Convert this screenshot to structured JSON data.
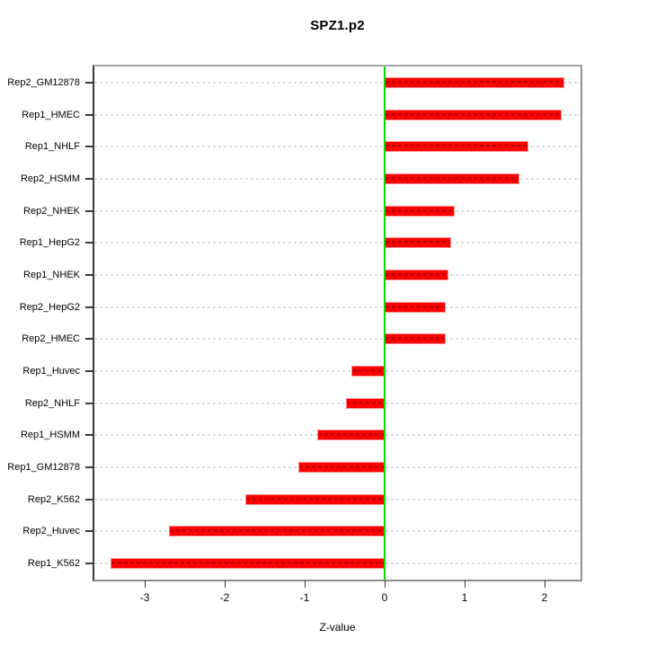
{
  "chart_data": {
    "type": "bar",
    "orientation": "horizontal",
    "title": "SPZ1.p2",
    "xlabel": "Z-value",
    "ylabel": "",
    "categories": [
      "Rep2_GM12878",
      "Rep1_HMEC",
      "Rep1_NHLF",
      "Rep2_HSMM",
      "Rep2_NHEK",
      "Rep1_HepG2",
      "Rep1_NHEK",
      "Rep2_HepG2",
      "Rep2_HMEC",
      "Rep1_Huvec",
      "Rep2_NHLF",
      "Rep1_HSMM",
      "Rep1_GM12878",
      "Rep2_K562",
      "Rep2_Huvec",
      "Rep1_K562"
    ],
    "values": [
      2.25,
      2.21,
      1.8,
      1.69,
      0.88,
      0.83,
      0.8,
      0.76,
      0.76,
      -0.42,
      -0.48,
      -0.84,
      -1.08,
      -1.74,
      -2.7,
      -3.43
    ],
    "x_ticks": [
      -3,
      -2,
      -1,
      0,
      1,
      2
    ],
    "x_tick_labels": [
      "-3",
      "-2",
      "-1",
      "0",
      "1",
      "2"
    ],
    "xlim": [
      -3.63,
      2.45
    ],
    "grid": "horizontal dotted line per category",
    "zero_line": true,
    "legend": "none",
    "colors": {
      "bar_fill": "#fb0100",
      "bar_border": "#ff9191",
      "bar_dash": "#c40000",
      "zero_line": "#00df00",
      "grid_line": "#dcdcdc",
      "box_border": "#949494",
      "axis_line": "#3a3a3a",
      "text": "#000000",
      "background": "#ffffff"
    }
  }
}
